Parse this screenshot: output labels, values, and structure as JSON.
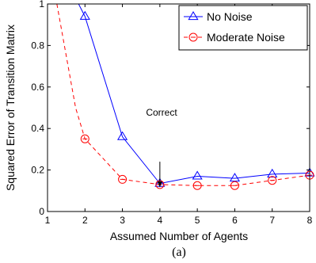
{
  "chart_data": {
    "type": "line",
    "xlabel": "Assumed Number of Agents",
    "ylabel": "Squared Error of Transition Matrix",
    "caption": "(a)",
    "xlim": [
      1,
      8
    ],
    "ylim": [
      0,
      1
    ],
    "xticks": [
      "1",
      "2",
      "3",
      "4",
      "5",
      "6",
      "7",
      "8"
    ],
    "yticks": [
      "0",
      "0.2",
      "0.4",
      "0.6",
      "0.8",
      "1"
    ],
    "legend_position": "top-right",
    "annotation": {
      "text": "Correct",
      "x": 4,
      "y": 0.24
    },
    "series": [
      {
        "name": "No Noise",
        "color": "#0000ff",
        "line_style": "solid",
        "marker": "triangle",
        "lead_in": {
          "x": [
            1.83,
            2
          ],
          "y": [
            1.0,
            0.94
          ]
        },
        "x": [
          2,
          3,
          4,
          5,
          6,
          7,
          8
        ],
        "y": [
          0.94,
          0.36,
          0.135,
          0.17,
          0.16,
          0.18,
          0.185
        ]
      },
      {
        "name": "Moderate Noise",
        "color": "#ff0000",
        "line_style": "dashed",
        "marker": "circle",
        "lead_in": {
          "x": [
            1.25,
            1.5,
            1.75,
            2
          ],
          "y": [
            1.0,
            0.75,
            0.5,
            0.35
          ]
        },
        "x": [
          2,
          3,
          4,
          5,
          6,
          7,
          8
        ],
        "y": [
          0.35,
          0.155,
          0.13,
          0.125,
          0.125,
          0.15,
          0.175
        ]
      }
    ]
  }
}
